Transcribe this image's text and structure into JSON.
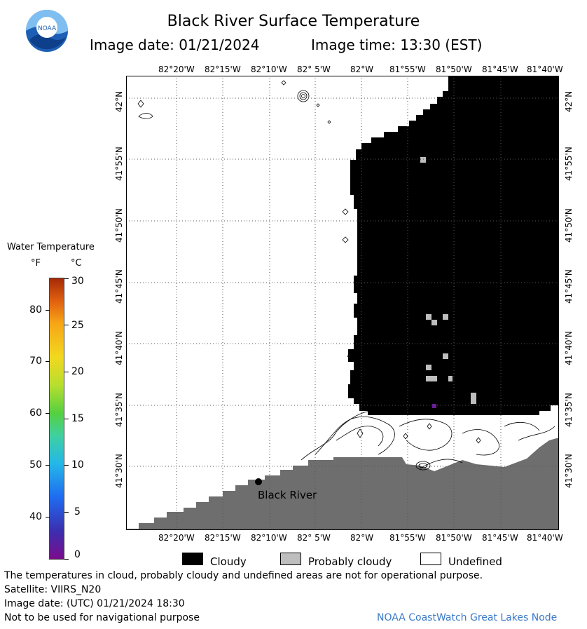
{
  "header": {
    "title": "Black River Surface Temperature",
    "image_date_label": "Image date: 01/21/2024",
    "image_time_label": "Image time: 13:30 (EST)"
  },
  "logo": {
    "text": "NOAA"
  },
  "legend": {
    "title": "Water Temperature",
    "unit_f": "°F",
    "unit_c": "°C",
    "fahrenheit_ticks": [
      "80",
      "70",
      "60",
      "50",
      "40"
    ],
    "celsius_ticks": [
      "30",
      "25",
      "20",
      "15",
      "10",
      "5",
      "0"
    ]
  },
  "map": {
    "longitude_labels": [
      "82°20'W",
      "82°15'W",
      "82°10'W",
      "82° 5'W",
      "82°W",
      "81°55'W",
      "81°50'W",
      "81°45'W",
      "81°40'W"
    ],
    "latitude_labels": [
      "42°N",
      "41°55'N",
      "41°50'N",
      "41°45'N",
      "41°40'N",
      "41°35'N",
      "41°30'N"
    ],
    "location_label": "Black River"
  },
  "key": {
    "cloudy": "Cloudy",
    "probably_cloudy": "Probably cloudy",
    "undefined": "Undefined",
    "colors": {
      "cloudy": "#000000",
      "probably_cloudy": "#bebebe",
      "undefined": "#ffffff",
      "land": "#6e6e6e"
    }
  },
  "footer": {
    "disclaimer": "The temperatures in cloud, probably cloudy and undefined areas are not for operational purpose.",
    "satellite": "Satellite: VIIRS_N20",
    "utc_date": "Image date: (UTC) 01/21/2024  18:30",
    "navigation": "Not to be used for navigational purpose",
    "credit": "NOAA CoastWatch Great Lakes Node"
  }
}
